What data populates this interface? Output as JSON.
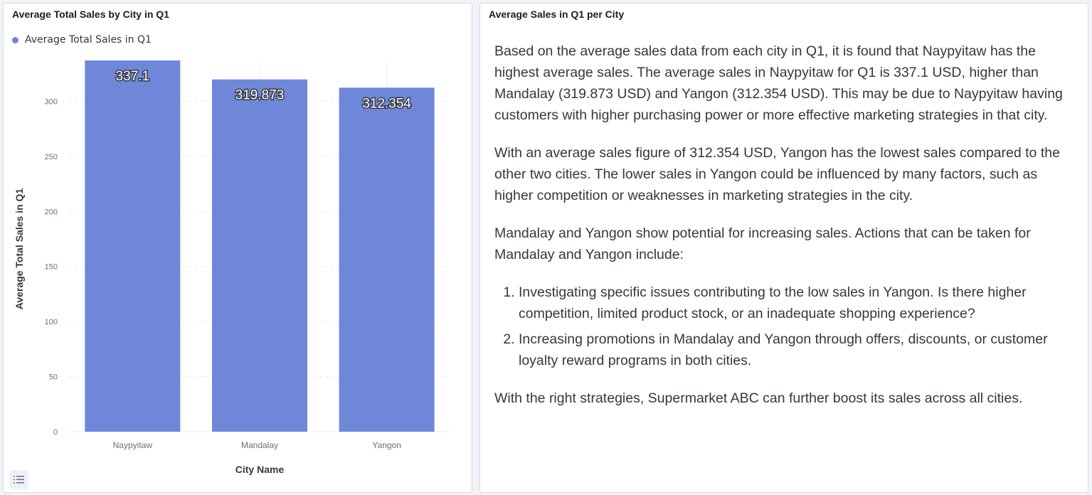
{
  "chart_panel": {
    "title": "Average Total Sales by City in Q1",
    "legend_label": "Average Total Sales in Q1"
  },
  "text_panel": {
    "title": "Average Sales in Q1 per City",
    "paragraphs": [
      "Based on the average sales data from each city in Q1, it is found that Naypyitaw has the highest average sales. The average sales in Naypyitaw for Q1 is 337.1 USD, higher than Mandalay (319.873 USD) and Yangon (312.354 USD). This may be due to Naypyitaw having customers with higher purchasing power or more effective marketing strategies in that city.",
      "With an average sales figure of 312.354 USD, Yangon has the lowest sales compared to the other two cities. The lower sales in Yangon could be influenced by many factors, such as higher competition or weaknesses in marketing strategies in the city.",
      "Mandalay and Yangon show potential for increasing sales. Actions that can be taken for Mandalay and Yangon include:",
      "With the right strategies, Supermarket ABC can further boost its sales across all cities."
    ],
    "list_items": [
      "Investigating specific issues contributing to the low sales in Yangon. Is there higher competition, limited product stock, or an inadequate shopping experience?",
      "Increasing promotions in Mandalay and Yangon through offers, discounts, or customer loyalty reward programs in both cities."
    ]
  },
  "chart_data": {
    "type": "bar",
    "title": "Average Total Sales by City in Q1",
    "xlabel": "City Name",
    "ylabel": "Average Total Sales in Q1",
    "categories": [
      "Naypyitaw",
      "Mandalay",
      "Yangon"
    ],
    "series": [
      {
        "name": "Average Total Sales in Q1",
        "values": [
          337.1,
          319.873,
          312.354
        ]
      }
    ],
    "data_labels": [
      "337.1",
      "319.873",
      "312.354"
    ],
    "yticks": [
      0,
      50,
      100,
      150,
      200,
      250,
      300
    ],
    "ylim": [
      0,
      337.1
    ],
    "grid": true,
    "legend": "top-left",
    "bar_color": "#6e87d9"
  }
}
